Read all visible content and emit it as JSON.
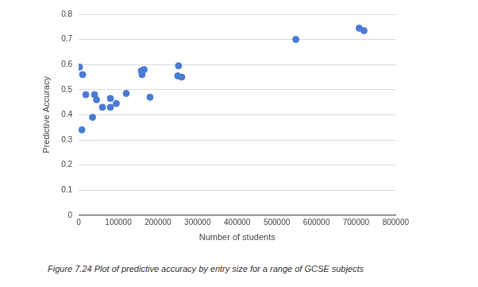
{
  "chart_data": {
    "type": "scatter",
    "caption": "Figure 7.24 Plot of predictive accuracy by entry size for a range of GCSE subjects",
    "x_label": "Number of students",
    "y_label": "Predictive Accuracy",
    "x": [
      2000,
      8000,
      10000,
      18000,
      35000,
      40000,
      45000,
      60000,
      80000,
      80000,
      95000,
      120000,
      158000,
      160000,
      165000,
      180000,
      250000,
      252000,
      260000,
      548000,
      708000,
      720000
    ],
    "values": [
      0.59,
      0.34,
      0.56,
      0.48,
      0.39,
      0.48,
      0.46,
      0.43,
      0.43,
      0.465,
      0.445,
      0.485,
      0.575,
      0.56,
      0.58,
      0.47,
      0.555,
      0.595,
      0.55,
      0.7,
      0.745,
      0.735
    ],
    "color": "#4a7bd4",
    "marker": "circle",
    "xlim": [
      0,
      800000
    ],
    "xticks": [
      0,
      100000,
      200000,
      300000,
      400000,
      500000,
      600000,
      700000,
      800000
    ],
    "ylim": [
      0,
      0.8
    ],
    "yticks": [
      0,
      0.1,
      0.2,
      0.3,
      0.4,
      0.5,
      0.6,
      0.7,
      0.8
    ],
    "grid": "y"
  }
}
